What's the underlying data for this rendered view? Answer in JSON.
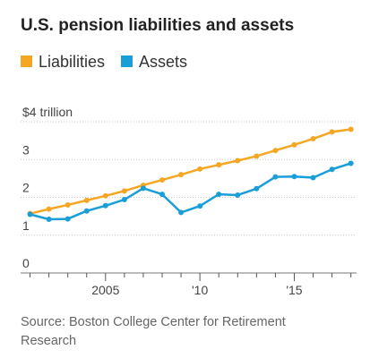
{
  "chart_data": {
    "type": "line",
    "title": "U.S. pension liabilities and assets",
    "x": [
      2001,
      2002,
      2003,
      2004,
      2005,
      2006,
      2007,
      2008,
      2009,
      2010,
      2011,
      2012,
      2013,
      2014,
      2015,
      2016,
      2017,
      2018
    ],
    "series": [
      {
        "name": "Liabilities",
        "color": "#f5a623",
        "values": [
          1.57,
          1.69,
          1.8,
          1.92,
          2.04,
          2.17,
          2.32,
          2.46,
          2.6,
          2.75,
          2.86,
          2.97,
          3.09,
          3.24,
          3.39,
          3.55,
          3.73,
          3.8
        ]
      },
      {
        "name": "Assets",
        "color": "#1a9ed8",
        "values": [
          1.55,
          1.42,
          1.43,
          1.64,
          1.78,
          1.94,
          2.24,
          2.08,
          1.6,
          1.77,
          2.08,
          2.06,
          2.23,
          2.54,
          2.55,
          2.52,
          2.74,
          2.9
        ]
      }
    ],
    "ylim": [
      0,
      4
    ],
    "xlim": [
      2000.5,
      2018.3
    ],
    "y_ticks": [
      {
        "value": 0,
        "label": "0"
      },
      {
        "value": 1,
        "label": "1"
      },
      {
        "value": 2,
        "label": "2"
      },
      {
        "value": 3,
        "label": "3"
      },
      {
        "value": 4,
        "label": "$4 trillion"
      }
    ],
    "x_ticks": [
      {
        "value": 2005,
        "label": "2005"
      },
      {
        "value": 2010,
        "label": "'10"
      },
      {
        "value": 2015,
        "label": "'15"
      }
    ],
    "x_minor_ticks": [
      2001,
      2002,
      2003,
      2004,
      2005,
      2006,
      2007,
      2008,
      2009,
      2010,
      2011,
      2012,
      2013,
      2014,
      2015,
      2016,
      2017,
      2018
    ],
    "grid": true,
    "legend_position": "top-left",
    "source": [
      "Source: Boston College Center for Retirement",
      "Research"
    ]
  }
}
